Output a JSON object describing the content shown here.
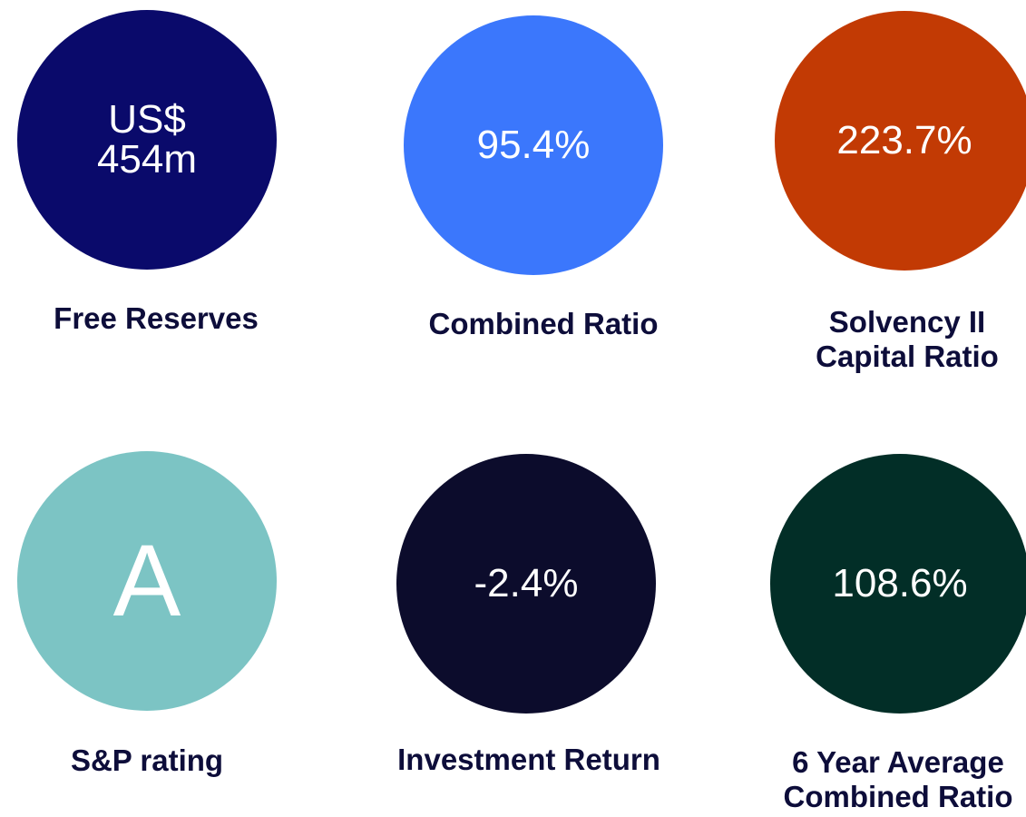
{
  "tiles": [
    {
      "value_lines": [
        "US$",
        "454m"
      ],
      "color": "#0a0a6b",
      "label_lines": [
        "Free Reserves"
      ]
    },
    {
      "value_lines": [
        "95.4%"
      ],
      "color": "#3b77fc",
      "label_lines": [
        "Combined Ratio"
      ]
    },
    {
      "value_lines": [
        "223.7%"
      ],
      "color": "#c23a04",
      "label_lines": [
        "Solvency II",
        "Capital Ratio"
      ]
    },
    {
      "value_lines": [
        "A"
      ],
      "color": "#7cc4c4",
      "label_lines": [
        "S&P rating"
      ]
    },
    {
      "value_lines": [
        "-2.4%"
      ],
      "color": "#0c0c2c",
      "label_lines": [
        "Investment Return"
      ]
    },
    {
      "value_lines": [
        "108.6%"
      ],
      "color": "#022e27",
      "label_lines": [
        "6 Year Average",
        "Combined Ratio"
      ]
    }
  ]
}
